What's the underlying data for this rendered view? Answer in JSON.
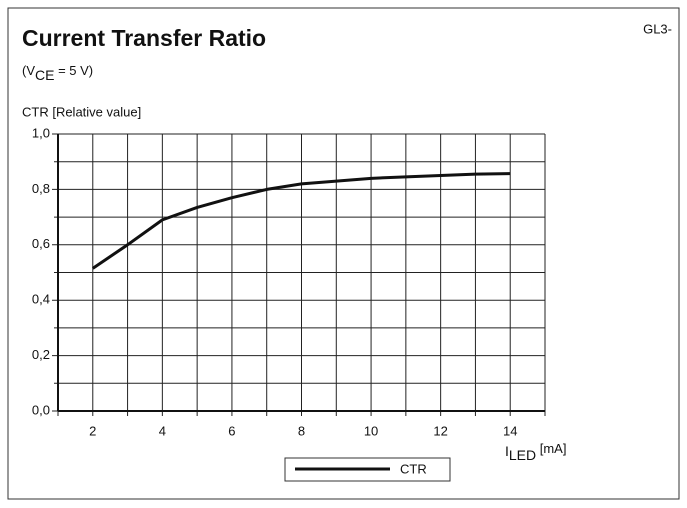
{
  "chart_data": {
    "type": "line",
    "title": "Current Transfer Ratio",
    "code": "GL3-",
    "subtitle": {
      "pre": "(V",
      "sub": "CE",
      "post": " = 5 V)"
    },
    "ylabel": "CTR [Relative value]",
    "xlabel": {
      "main": "I",
      "sub": "LED",
      "post": " [mA]"
    },
    "x": [
      2,
      3,
      4,
      5,
      6,
      7,
      8,
      9,
      10,
      11,
      12,
      13,
      14
    ],
    "series": [
      {
        "name": "CTR",
        "color": "#111111",
        "values": [
          0.515,
          0.6,
          0.69,
          0.735,
          0.77,
          0.8,
          0.82,
          0.83,
          0.84,
          0.845,
          0.85,
          0.855,
          0.857
        ]
      }
    ],
    "xlim": [
      1,
      15
    ],
    "ylim": [
      0,
      1
    ],
    "xticks": [
      2,
      4,
      6,
      8,
      10,
      12,
      14
    ],
    "yticks": [
      {
        "value": 0,
        "label": "0,0"
      },
      {
        "value": 0.2,
        "label": "0,2"
      },
      {
        "value": 0.4,
        "label": "0,4"
      },
      {
        "value": 0.6,
        "label": "0,6"
      },
      {
        "value": 0.8,
        "label": "0,8"
      },
      {
        "value": 1,
        "label": "1,0"
      }
    ],
    "xminor": [
      1,
      3,
      5,
      7,
      9,
      11,
      13,
      15
    ],
    "yminor": [
      0.1,
      0.3,
      0.5,
      0.7,
      0.9
    ],
    "grid": true,
    "legend": "bottom"
  }
}
